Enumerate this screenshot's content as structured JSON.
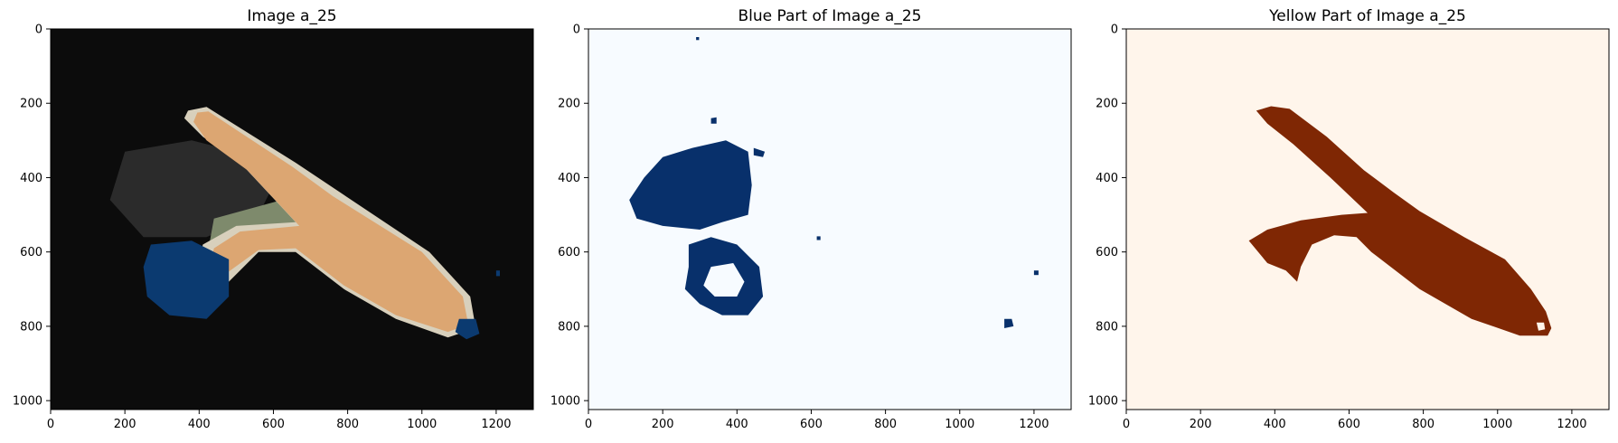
{
  "chart_data": [
    {
      "type": "heatmap",
      "title": "Image a_25",
      "xlim": [
        0,
        1300
      ],
      "ylim": [
        1024,
        0
      ],
      "xticks": [
        0,
        200,
        400,
        600,
        800,
        1000,
        1200
      ],
      "yticks": [
        0,
        200,
        400,
        600,
        800,
        1000
      ],
      "colors": {
        "background": "#0c0c0c",
        "shadow": "#2b2b2b",
        "object": "#dca672",
        "highlight": "#d8d0bc",
        "green": "#7e8a6c",
        "blue": "#0b3a70"
      },
      "regions": [
        {
          "class": "shadow",
          "polygon": [
            [
              200,
              330
            ],
            [
              380,
              300
            ],
            [
              500,
              330
            ],
            [
              600,
              420
            ],
            [
              560,
              500
            ],
            [
              420,
              560
            ],
            [
              250,
              560
            ],
            [
              160,
              460
            ]
          ]
        },
        {
          "class": "green",
          "polygon": [
            [
              440,
              510
            ],
            [
              660,
              450
            ],
            [
              700,
              520
            ],
            [
              560,
              580
            ],
            [
              420,
              620
            ]
          ]
        },
        {
          "class": "highlight",
          "polygon": [
            [
              370,
              220
            ],
            [
              420,
              210
            ],
            [
              660,
              360
            ],
            [
              780,
              440
            ],
            [
              1020,
              600
            ],
            [
              1130,
              720
            ],
            [
              1145,
              805
            ],
            [
              1070,
              830
            ],
            [
              930,
              780
            ],
            [
              790,
              700
            ],
            [
              660,
              600
            ],
            [
              560,
              600
            ],
            [
              460,
              700
            ],
            [
              380,
              720
            ],
            [
              410,
              580
            ],
            [
              500,
              530
            ],
            [
              660,
              520
            ],
            [
              520,
              370
            ],
            [
              410,
              290
            ],
            [
              360,
              240
            ]
          ]
        },
        {
          "class": "object",
          "polygon": [
            [
              395,
              225
            ],
            [
              425,
              222
            ],
            [
              650,
              370
            ],
            [
              760,
              450
            ],
            [
              1000,
              600
            ],
            [
              1110,
              720
            ],
            [
              1125,
              795
            ],
            [
              1070,
              815
            ],
            [
              930,
              770
            ],
            [
              790,
              690
            ],
            [
              660,
              590
            ],
            [
              560,
              595
            ],
            [
              470,
              660
            ],
            [
              420,
              680
            ],
            [
              440,
              590
            ],
            [
              510,
              545
            ],
            [
              670,
              530
            ],
            [
              530,
              380
            ],
            [
              420,
              300
            ],
            [
              385,
              250
            ]
          ]
        },
        {
          "class": "blue",
          "polygon": [
            [
              270,
              580
            ],
            [
              380,
              570
            ],
            [
              480,
              620
            ],
            [
              480,
              720
            ],
            [
              420,
              780
            ],
            [
              320,
              770
            ],
            [
              260,
              720
            ],
            [
              250,
              640
            ]
          ]
        },
        {
          "class": "blue",
          "polygon": [
            [
              1100,
              780
            ],
            [
              1145,
              780
            ],
            [
              1155,
              820
            ],
            [
              1120,
              835
            ],
            [
              1090,
              815
            ]
          ]
        },
        {
          "class": "blue",
          "polygon": [
            [
              1200,
              650
            ],
            [
              1210,
              650
            ],
            [
              1210,
              665
            ],
            [
              1200,
              665
            ]
          ]
        }
      ]
    },
    {
      "type": "heatmap",
      "title": "Blue Part of Image a_25",
      "xlim": [
        0,
        1300
      ],
      "ylim": [
        1024,
        0
      ],
      "xticks": [
        0,
        200,
        400,
        600,
        800,
        1000,
        1200
      ],
      "yticks": [
        0,
        200,
        400,
        600,
        800,
        1000
      ],
      "colors": {
        "background": "#f7fbff",
        "mask": "#08306b"
      },
      "regions": [
        {
          "class": "mask",
          "polygon": [
            [
              150,
              400
            ],
            [
              200,
              345
            ],
            [
              280,
              320
            ],
            [
              370,
              300
            ],
            [
              430,
              330
            ],
            [
              440,
              420
            ],
            [
              430,
              500
            ],
            [
              360,
              520
            ],
            [
              300,
              540
            ],
            [
              200,
              530
            ],
            [
              130,
              510
            ],
            [
              110,
              460
            ]
          ]
        },
        {
          "class": "mask",
          "polygon": [
            [
              270,
              580
            ],
            [
              330,
              560
            ],
            [
              400,
              580
            ],
            [
              460,
              640
            ],
            [
              470,
              720
            ],
            [
              430,
              770
            ],
            [
              360,
              770
            ],
            [
              300,
              740
            ],
            [
              260,
              700
            ],
            [
              270,
              640
            ]
          ]
        },
        {
          "class": "mask",
          "polygon": [
            [
              1120,
              780
            ],
            [
              1140,
              780
            ],
            [
              1145,
              800
            ],
            [
              1120,
              805
            ]
          ]
        },
        {
          "class": "mask",
          "polygon": [
            [
              1200,
              650
            ],
            [
              1212,
              650
            ],
            [
              1212,
              662
            ],
            [
              1200,
              662
            ]
          ]
        },
        {
          "class": "mask",
          "polygon": [
            [
              445,
              320
            ],
            [
              475,
              330
            ],
            [
              470,
              345
            ],
            [
              445,
              340
            ]
          ]
        },
        {
          "class": "mask",
          "polygon": [
            [
              330,
              240
            ],
            [
              345,
              238
            ],
            [
              345,
              255
            ],
            [
              330,
              255
            ]
          ]
        },
        {
          "class": "mask",
          "polygon": [
            [
              615,
              558
            ],
            [
              625,
              558
            ],
            [
              625,
              568
            ],
            [
              615,
              568
            ]
          ]
        },
        {
          "class": "mask",
          "polygon": [
            [
              290,
              22
            ],
            [
              298,
              22
            ],
            [
              298,
              30
            ],
            [
              290,
              30
            ]
          ]
        }
      ],
      "holes": [
        {
          "polygon": [
            [
              330,
              640
            ],
            [
              390,
              630
            ],
            [
              420,
              680
            ],
            [
              400,
              720
            ],
            [
              340,
              720
            ],
            [
              310,
              690
            ]
          ]
        }
      ]
    },
    {
      "type": "heatmap",
      "title": "Yellow Part of Image a_25",
      "xlim": [
        0,
        1300
      ],
      "ylim": [
        1024,
        0
      ],
      "xticks": [
        0,
        200,
        400,
        600,
        800,
        1000,
        1200
      ],
      "yticks": [
        0,
        200,
        400,
        600,
        800,
        1000
      ],
      "colors": {
        "background": "#fff5eb",
        "mask": "#7f2704"
      },
      "regions": [
        {
          "class": "mask",
          "polygon": [
            [
              350,
              220
            ],
            [
              390,
              208
            ],
            [
              440,
              215
            ],
            [
              540,
              290
            ],
            [
              640,
              380
            ],
            [
              720,
              440
            ],
            [
              790,
              490
            ],
            [
              910,
              560
            ],
            [
              1020,
              620
            ],
            [
              1090,
              700
            ],
            [
              1130,
              760
            ],
            [
              1145,
              805
            ],
            [
              1135,
              825
            ],
            [
              1060,
              825
            ],
            [
              930,
              780
            ],
            [
              790,
              700
            ],
            [
              660,
              600
            ],
            [
              620,
              560
            ],
            [
              560,
              555
            ],
            [
              500,
              580
            ],
            [
              470,
              640
            ],
            [
              460,
              680
            ],
            [
              430,
              650
            ],
            [
              380,
              630
            ],
            [
              330,
              570
            ],
            [
              380,
              540
            ],
            [
              470,
              515
            ],
            [
              580,
              500
            ],
            [
              650,
              495
            ],
            [
              550,
              400
            ],
            [
              450,
              310
            ],
            [
              380,
              255
            ]
          ]
        }
      ],
      "holes": [
        {
          "polygon": [
            [
              1105,
              790
            ],
            [
              1125,
              790
            ],
            [
              1128,
              808
            ],
            [
              1110,
              812
            ]
          ]
        }
      ]
    }
  ]
}
